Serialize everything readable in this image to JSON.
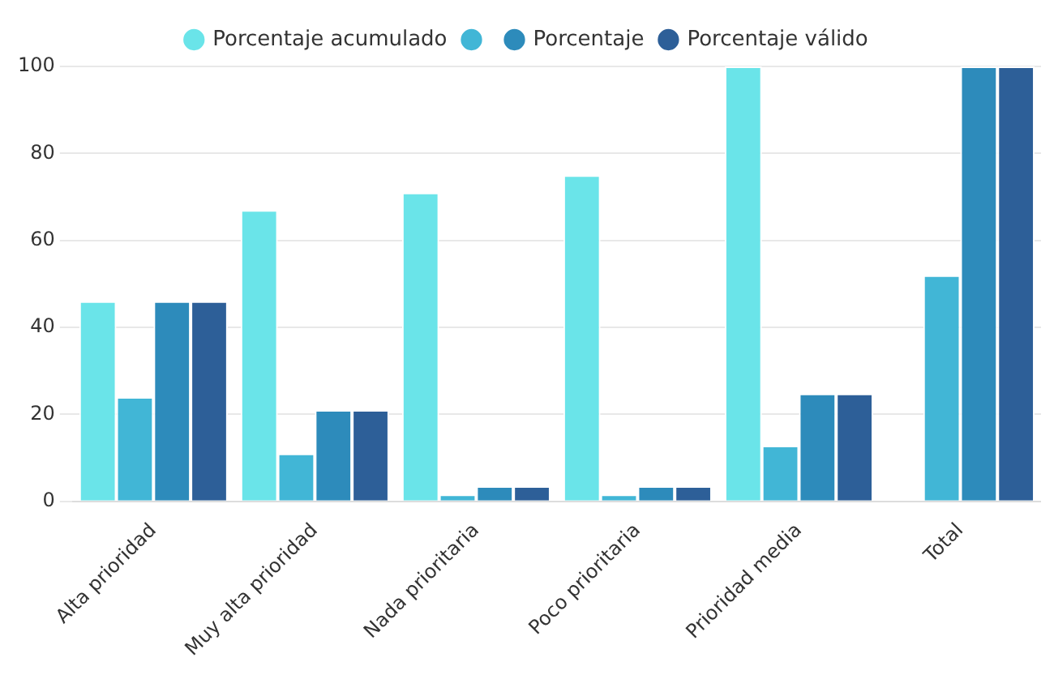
{
  "chart_data": {
    "type": "bar",
    "categories": [
      "Alta prioridad",
      "Muy alta prioridad",
      "Nada prioritaria",
      "Poco prioritaria",
      "Prioridad media",
      "Total"
    ],
    "series": [
      {
        "name": "Porcentaje acumulado",
        "color": "#6ae4e9",
        "values": [
          46,
          67,
          71,
          75,
          100,
          null
        ]
      },
      {
        "color": "#41b6d6",
        "values": [
          24,
          11,
          1.6,
          1.6,
          12.8,
          52
        ]
      },
      {
        "name": "Porcentaje",
        "color": "#2d8bbb",
        "values": [
          46,
          21,
          3.5,
          3.5,
          24.8,
          100
        ]
      },
      {
        "name": "Porcentaje válido",
        "color": "#2d5f98",
        "values": [
          46,
          21,
          3.5,
          3.5,
          24.8,
          100
        ]
      }
    ],
    "ylim": [
      0,
      100
    ],
    "yticks": [
      0,
      20,
      40,
      60,
      80,
      100
    ],
    "grid": "y",
    "legend": "top"
  }
}
